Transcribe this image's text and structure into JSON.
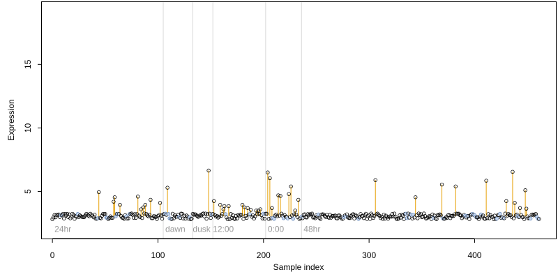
{
  "chart_data": {
    "type": "scatter",
    "xlabel": "Sample index",
    "ylabel": "Expression",
    "xlim": [
      -10,
      477
    ],
    "ylim": [
      1.3,
      19.9
    ],
    "x_ticks": [
      "0",
      "100",
      "200",
      "300",
      "400"
    ],
    "x_tick_values": [
      0,
      100,
      200,
      300,
      400
    ],
    "y_ticks": [
      "5",
      "10",
      "15"
    ],
    "y_tick_values": [
      5,
      10,
      15
    ],
    "baseline": 3.05,
    "n_samples": 462,
    "stem_color": "#e69f00",
    "point_color": "#000000",
    "highlight_point_color": "#6c8ebf",
    "vline_color": "#d9d9d9",
    "label_color": "#999999",
    "vertical_lines": [
      105,
      133,
      152,
      202,
      236
    ],
    "time_labels": [
      {
        "x": 2,
        "y": 2,
        "label": "24hr"
      },
      {
        "x": 107,
        "y": 2,
        "label": "dawn"
      },
      {
        "x": 133,
        "y": 2,
        "label": "dusk"
      },
      {
        "x": 152,
        "y": 2,
        "label": "12:00"
      },
      {
        "x": 204,
        "y": 2,
        "label": "0:00"
      },
      {
        "x": 238,
        "y": 2,
        "label": "48hr"
      }
    ],
    "peaks": [
      {
        "x": 44,
        "y": 4.95
      },
      {
        "x": 58,
        "y": 4.2
      },
      {
        "x": 59,
        "y": 4.55
      },
      {
        "x": 64,
        "y": 3.95
      },
      {
        "x": 81,
        "y": 4.6
      },
      {
        "x": 84,
        "y": 3.6
      },
      {
        "x": 86,
        "y": 3.75
      },
      {
        "x": 88,
        "y": 3.95
      },
      {
        "x": 93,
        "y": 4.35
      },
      {
        "x": 102,
        "y": 4.1
      },
      {
        "x": 109,
        "y": 5.3
      },
      {
        "x": 148,
        "y": 6.65
      },
      {
        "x": 153,
        "y": 4.25
      },
      {
        "x": 159,
        "y": 3.95
      },
      {
        "x": 162,
        "y": 3.6
      },
      {
        "x": 163,
        "y": 3.85
      },
      {
        "x": 167,
        "y": 3.85
      },
      {
        "x": 180,
        "y": 3.95
      },
      {
        "x": 182,
        "y": 3.75
      },
      {
        "x": 185,
        "y": 3.7
      },
      {
        "x": 188,
        "y": 3.55
      },
      {
        "x": 193,
        "y": 3.5
      },
      {
        "x": 195,
        "y": 3.5
      },
      {
        "x": 197,
        "y": 3.6
      },
      {
        "x": 204,
        "y": 6.5
      },
      {
        "x": 206,
        "y": 6.05
      },
      {
        "x": 208,
        "y": 3.7
      },
      {
        "x": 214,
        "y": 4.7
      },
      {
        "x": 216,
        "y": 4.65
      },
      {
        "x": 224,
        "y": 4.8
      },
      {
        "x": 226,
        "y": 5.4
      },
      {
        "x": 230,
        "y": 3.5
      },
      {
        "x": 233,
        "y": 4.35
      },
      {
        "x": 306,
        "y": 5.9
      },
      {
        "x": 344,
        "y": 4.55
      },
      {
        "x": 369,
        "y": 5.55
      },
      {
        "x": 382,
        "y": 5.4
      },
      {
        "x": 411,
        "y": 5.85
      },
      {
        "x": 430,
        "y": 4.25
      },
      {
        "x": 436,
        "y": 6.55
      },
      {
        "x": 438,
        "y": 4.1
      },
      {
        "x": 443,
        "y": 3.7
      },
      {
        "x": 448,
        "y": 5.1
      },
      {
        "x": 449,
        "y": 3.65
      }
    ]
  }
}
